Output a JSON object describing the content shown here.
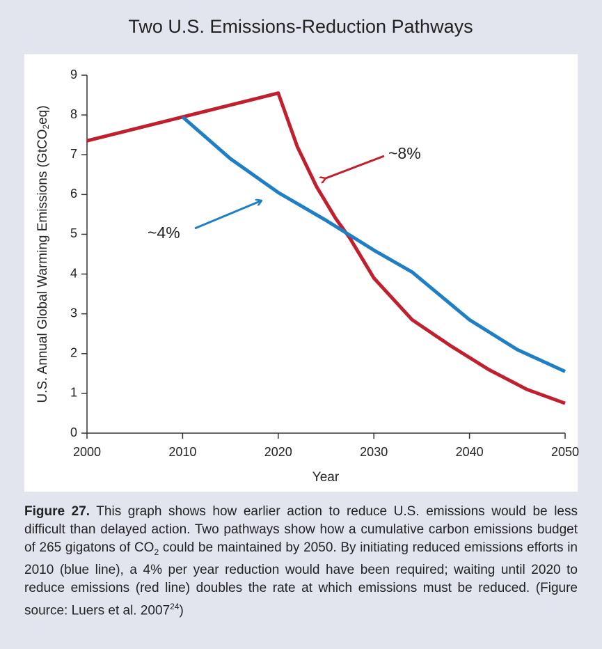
{
  "chart_data": {
    "type": "line",
    "title": "Two U.S. Emissions-Reduction Pathways",
    "x_label": "Year",
    "y_label": {
      "before": "U.S. Annual Global Warming Emissions (GtCO",
      "sub": "2",
      "after": "eq)"
    },
    "xlim": [
      2000,
      2050
    ],
    "ylim": [
      0,
      9
    ],
    "xticks": [
      2000,
      2010,
      2020,
      2030,
      2040,
      2050
    ],
    "yticks": [
      0,
      1,
      2,
      3,
      4,
      5,
      6,
      7,
      8,
      9
    ],
    "grid": false,
    "series": [
      {
        "color": "#c0202e",
        "x": [
          2000,
          2010,
          2020,
          2022,
          2024,
          2026,
          2027.5,
          2030,
          2034,
          2038,
          2042,
          2046,
          2050
        ],
        "values": [
          7.35,
          7.95,
          8.55,
          7.2,
          6.2,
          5.4,
          4.9,
          3.9,
          2.85,
          2.2,
          1.6,
          1.1,
          0.75
        ]
      },
      {
        "color": "#1f7fc4",
        "x": [
          2010,
          2015,
          2020,
          2025,
          2030,
          2034,
          2040,
          2045,
          2050
        ],
        "values": [
          7.95,
          6.9,
          6.05,
          5.35,
          4.6,
          4.05,
          2.85,
          2.1,
          1.55
        ]
      }
    ],
    "annotations": [
      "~8%",
      "~4%"
    ]
  },
  "caption": {
    "label": "Figure 27.",
    "text": " This graph shows how earlier action to reduce U.S. emissions would be less difficult than delayed action. Two pathways show how a cumulative carbon emissions budget of 265 gigatons of CO",
    "sub": "2",
    "text2": " could be maintained by 2050. By initiating reduced emissions efforts in 2010 (blue line), a 4% per year reduction would have been required; waiting until 2020 to reduce emissions (red line) doubles the rate at which emissions must be reduced. (Figure source: Luers et al. 2007",
    "sup": "24",
    "text3": ")"
  }
}
